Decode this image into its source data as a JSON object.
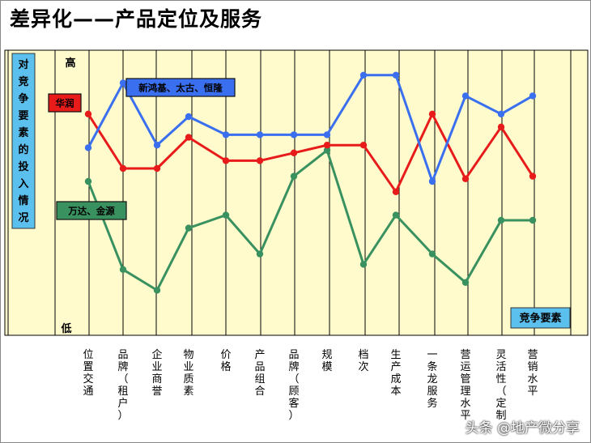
{
  "title": "差异化——产品定位及服务",
  "watermark": "头条 @地产微分享",
  "colors": {
    "background": "#fffbcc",
    "gridline": "#000000",
    "blue_series": "#3a6ff0",
    "red_series": "#e81b1b",
    "green_series": "#3a9160",
    "side_box": "#5cc0ee",
    "label_red": "#e81b1b",
    "label_blue": "#3a6ff0",
    "label_green": "#3a9160"
  },
  "chart_data": {
    "type": "line",
    "title": "",
    "ylabel": "对竞争要素的投入情况",
    "xlabel": "竞争要素",
    "y_top_label": "高",
    "y_bottom_label": "低",
    "ylim": [
      0,
      100
    ],
    "grid": "vertical",
    "categories": [
      "位置交通",
      "品牌（租户）",
      "企业商誉",
      "物业质素",
      "价格",
      "产品组合",
      "品牌（顾客）",
      "规模",
      "档次",
      "生产成本",
      "一条龙服务",
      "营运管理水平",
      "灵活性（定制",
      "营销水平"
    ],
    "series": [
      {
        "name": "新鸿基、太古、恒隆",
        "color": "#3a6ff0",
        "values": [
          68,
          93,
          69,
          80,
          73,
          73,
          73,
          73,
          96,
          96,
          55,
          88,
          81,
          88
        ]
      },
      {
        "name": "华润",
        "color": "#e81b1b",
        "values": [
          81,
          60,
          60,
          72,
          63,
          63,
          66,
          69,
          69,
          51,
          81,
          56,
          76,
          57
        ]
      },
      {
        "name": "万达、金源",
        "color": "#3a9160",
        "values": [
          55,
          21,
          13,
          37,
          42,
          27,
          57,
          67,
          23,
          42,
          27,
          16,
          40,
          40
        ]
      }
    ]
  }
}
